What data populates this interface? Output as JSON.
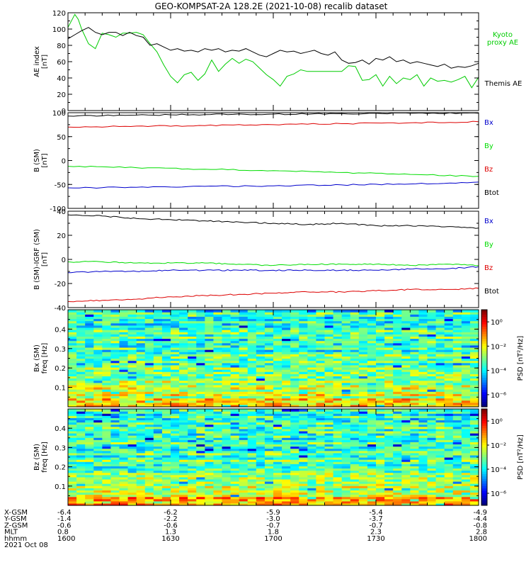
{
  "title": "GEO-KOMPSAT-2A 128.2E (2021-10-08) recalib dataset",
  "colors": {
    "black": "#000000",
    "green": "#00dd00",
    "red": "#dd0000",
    "blue": "#0000cc",
    "kyoto": "#00cc00"
  },
  "chart_data": [
    {
      "type": "line",
      "name": "ae",
      "ylabel_lines": [
        "AE index",
        "[nT]"
      ],
      "ylim": [
        0,
        120
      ],
      "yticks": [
        0,
        20,
        40,
        60,
        80,
        100,
        120
      ],
      "xlim": [
        0,
        120
      ],
      "legend": [
        {
          "lines": [
            "Kyoto",
            "proxy AE"
          ],
          "color": "#00cc00"
        },
        {
          "lines": [
            "Themis AE"
          ],
          "color": "#000000"
        }
      ],
      "series": [
        {
          "name": "Kyoto proxy AE",
          "color": "#00cc00",
          "x": [
            0,
            2,
            3,
            4,
            6,
            8,
            10,
            12,
            14,
            16,
            18,
            20,
            22,
            24,
            26,
            28,
            30,
            32,
            34,
            36,
            38,
            40,
            42,
            44,
            46,
            48,
            50,
            52,
            54,
            56,
            58,
            60,
            62,
            64,
            66,
            68,
            70,
            72,
            74,
            76,
            78,
            80,
            82,
            84,
            86,
            88,
            90,
            92,
            94,
            96,
            98,
            100,
            102,
            104,
            106,
            108,
            110,
            112,
            114,
            116,
            118,
            120
          ],
          "y": [
            102,
            118,
            112,
            100,
            82,
            76,
            95,
            93,
            90,
            95,
            95,
            96,
            93,
            82,
            72,
            56,
            42,
            34,
            44,
            47,
            37,
            45,
            62,
            48,
            57,
            64,
            58,
            63,
            60,
            52,
            44,
            38,
            30,
            42,
            45,
            50,
            48,
            48,
            48,
            48,
            48,
            48,
            55,
            54,
            37,
            38,
            44,
            30,
            42,
            33,
            40,
            38,
            44,
            30,
            40,
            36,
            37,
            35,
            38,
            42,
            28,
            41
          ]
        },
        {
          "name": "Themis AE",
          "color": "#000000",
          "x": [
            0,
            2,
            4,
            6,
            8,
            10,
            12,
            14,
            16,
            18,
            20,
            22,
            24,
            26,
            28,
            30,
            32,
            34,
            36,
            38,
            40,
            42,
            44,
            46,
            48,
            50,
            52,
            54,
            56,
            58,
            60,
            62,
            64,
            66,
            68,
            70,
            72,
            74,
            76,
            78,
            80,
            82,
            84,
            86,
            88,
            90,
            92,
            94,
            96,
            98,
            100,
            102,
            104,
            106,
            108,
            110,
            112,
            114,
            116,
            118,
            120
          ],
          "y": [
            88,
            93,
            98,
            102,
            96,
            93,
            96,
            96,
            92,
            96,
            92,
            90,
            80,
            82,
            78,
            74,
            76,
            73,
            74,
            72,
            76,
            74,
            76,
            72,
            74,
            73,
            76,
            72,
            68,
            66,
            70,
            74,
            72,
            73,
            70,
            72,
            74,
            70,
            68,
            72,
            62,
            58,
            59,
            62,
            57,
            64,
            62,
            66,
            60,
            62,
            58,
            60,
            58,
            56,
            54,
            57,
            52,
            54,
            53,
            55,
            58
          ]
        }
      ]
    },
    {
      "type": "line",
      "name": "bsm",
      "ylabel_lines": [
        "B (SM)",
        "[nT]"
      ],
      "ylim": [
        -100,
        100
      ],
      "yticks": [
        -100,
        -50,
        0,
        50,
        100
      ],
      "xlim": [
        0,
        120
      ],
      "legend": [
        {
          "lines": [
            "Bx"
          ],
          "color": "#0000cc"
        },
        {
          "lines": [
            "By"
          ],
          "color": "#00dd00"
        },
        {
          "lines": [
            "Bz"
          ],
          "color": "#dd0000"
        },
        {
          "lines": [
            "Btot"
          ],
          "color": "#000000"
        }
      ],
      "series": [
        {
          "name": "Btot",
          "color": "#000000",
          "x": [
            0,
            20,
            40,
            60,
            80,
            100,
            120
          ],
          "y": [
            93,
            95,
            96,
            97,
            98,
            99,
            99
          ]
        },
        {
          "name": "Bz",
          "color": "#dd0000",
          "x": [
            0,
            20,
            40,
            60,
            80,
            100,
            120
          ],
          "y": [
            70,
            72,
            73,
            75,
            77,
            79,
            81
          ]
        },
        {
          "name": "By",
          "color": "#00dd00",
          "x": [
            0,
            20,
            40,
            60,
            80,
            100,
            120
          ],
          "y": [
            -12,
            -15,
            -18,
            -21,
            -25,
            -29,
            -33
          ]
        },
        {
          "name": "Bx",
          "color": "#0000cc",
          "x": [
            0,
            20,
            40,
            60,
            80,
            100,
            120
          ],
          "y": [
            -57,
            -56,
            -54,
            -53,
            -51,
            -49,
            -45
          ]
        }
      ]
    },
    {
      "type": "line",
      "name": "bdiff",
      "ylabel_lines": [
        "B (SM)-IGRF (SM)",
        "[nT]"
      ],
      "ylim": [
        -40,
        40
      ],
      "yticks": [
        -40,
        -20,
        0,
        20,
        40
      ],
      "xlim": [
        0,
        120
      ],
      "legend": [
        {
          "lines": [
            "Bx"
          ],
          "color": "#0000cc"
        },
        {
          "lines": [
            "By"
          ],
          "color": "#00dd00"
        },
        {
          "lines": [
            "Bz"
          ],
          "color": "#dd0000"
        },
        {
          "lines": [
            "Btot"
          ],
          "color": "#000000"
        }
      ],
      "series": [
        {
          "name": "Btot",
          "color": "#000000",
          "x": [
            0,
            10,
            20,
            30,
            40,
            50,
            60,
            70,
            80,
            90,
            100,
            110,
            120
          ],
          "y": [
            37,
            36,
            34,
            33,
            32,
            31,
            30,
            29,
            30,
            28,
            28,
            27,
            26
          ]
        },
        {
          "name": "By",
          "color": "#00dd00",
          "x": [
            0,
            10,
            20,
            30,
            40,
            50,
            60,
            70,
            80,
            90,
            100,
            110,
            120
          ],
          "y": [
            -2,
            -2,
            -3,
            -3,
            -3,
            -4,
            -5,
            -4,
            -4,
            -4,
            -5,
            -4,
            -5
          ]
        },
        {
          "name": "Bx",
          "color": "#0000cc",
          "x": [
            0,
            10,
            20,
            30,
            40,
            50,
            60,
            70,
            80,
            90,
            100,
            110,
            120
          ],
          "y": [
            -11,
            -10,
            -10,
            -9,
            -9,
            -9,
            -9,
            -9,
            -9,
            -9,
            -8,
            -8,
            -6
          ]
        },
        {
          "name": "Bz",
          "color": "#dd0000",
          "x": [
            0,
            10,
            20,
            30,
            40,
            50,
            60,
            70,
            80,
            90,
            100,
            110,
            120
          ],
          "y": [
            -35,
            -34,
            -33,
            -31,
            -30,
            -29,
            -28,
            -27,
            -27,
            -26,
            -25,
            -25,
            -24
          ]
        }
      ]
    },
    {
      "type": "heatmap",
      "name": "bx_spec",
      "ylabel_lines": [
        "Bx (SM)",
        "freq [Hz]"
      ],
      "ylim": [
        0,
        0.5
      ],
      "yticks": [
        0.1,
        0.2,
        0.3,
        0.4
      ],
      "xlim": [
        0,
        120
      ],
      "colorbar_label": "PSD [nT²/Hz]",
      "colorbar_ticks": [
        "10⁰",
        "10⁻²",
        "10⁻⁴",
        "10⁻⁶"
      ],
      "colorbar_tick_exponents": [
        0,
        -2,
        -4,
        -6
      ],
      "colorbar_range_log10": [
        -7,
        1
      ]
    },
    {
      "type": "heatmap",
      "name": "bz_spec",
      "ylabel_lines": [
        "Bz (SM)",
        "freq [Hz]"
      ],
      "ylim": [
        0,
        0.5
      ],
      "yticks": [
        0.1,
        0.2,
        0.3,
        0.4
      ],
      "xlim": [
        0,
        120
      ],
      "colorbar_label": "PSD [nT²/Hz]",
      "colorbar_ticks": [
        "10⁰",
        "10⁻²",
        "10⁻⁴",
        "10⁻⁶"
      ],
      "colorbar_tick_exponents": [
        0,
        -2,
        -4,
        -6
      ],
      "colorbar_range_log10": [
        -7,
        1
      ]
    }
  ],
  "xaxis": {
    "row_labels": [
      "X-GSM",
      "Y-GSM",
      "Z-GSM",
      "MLT",
      "hhmm"
    ],
    "tick_x": [
      0,
      30,
      60,
      90,
      120
    ],
    "columns": [
      [
        "-6.4",
        "-1.4",
        "-0.6",
        "0.8",
        "1600"
      ],
      [
        "-6.2",
        "-2.2",
        "-0.6",
        "1.3",
        "1630"
      ],
      [
        "-5.9",
        "-3.0",
        "-0.7",
        "1.8",
        "1700"
      ],
      [
        "-5.4",
        "-3.7",
        "-0.7",
        "2.3",
        "1730"
      ],
      [
        "-4.9",
        "-4.4",
        "-0.8",
        "2.8",
        "1800"
      ]
    ],
    "date": "2021 Oct 08"
  }
}
